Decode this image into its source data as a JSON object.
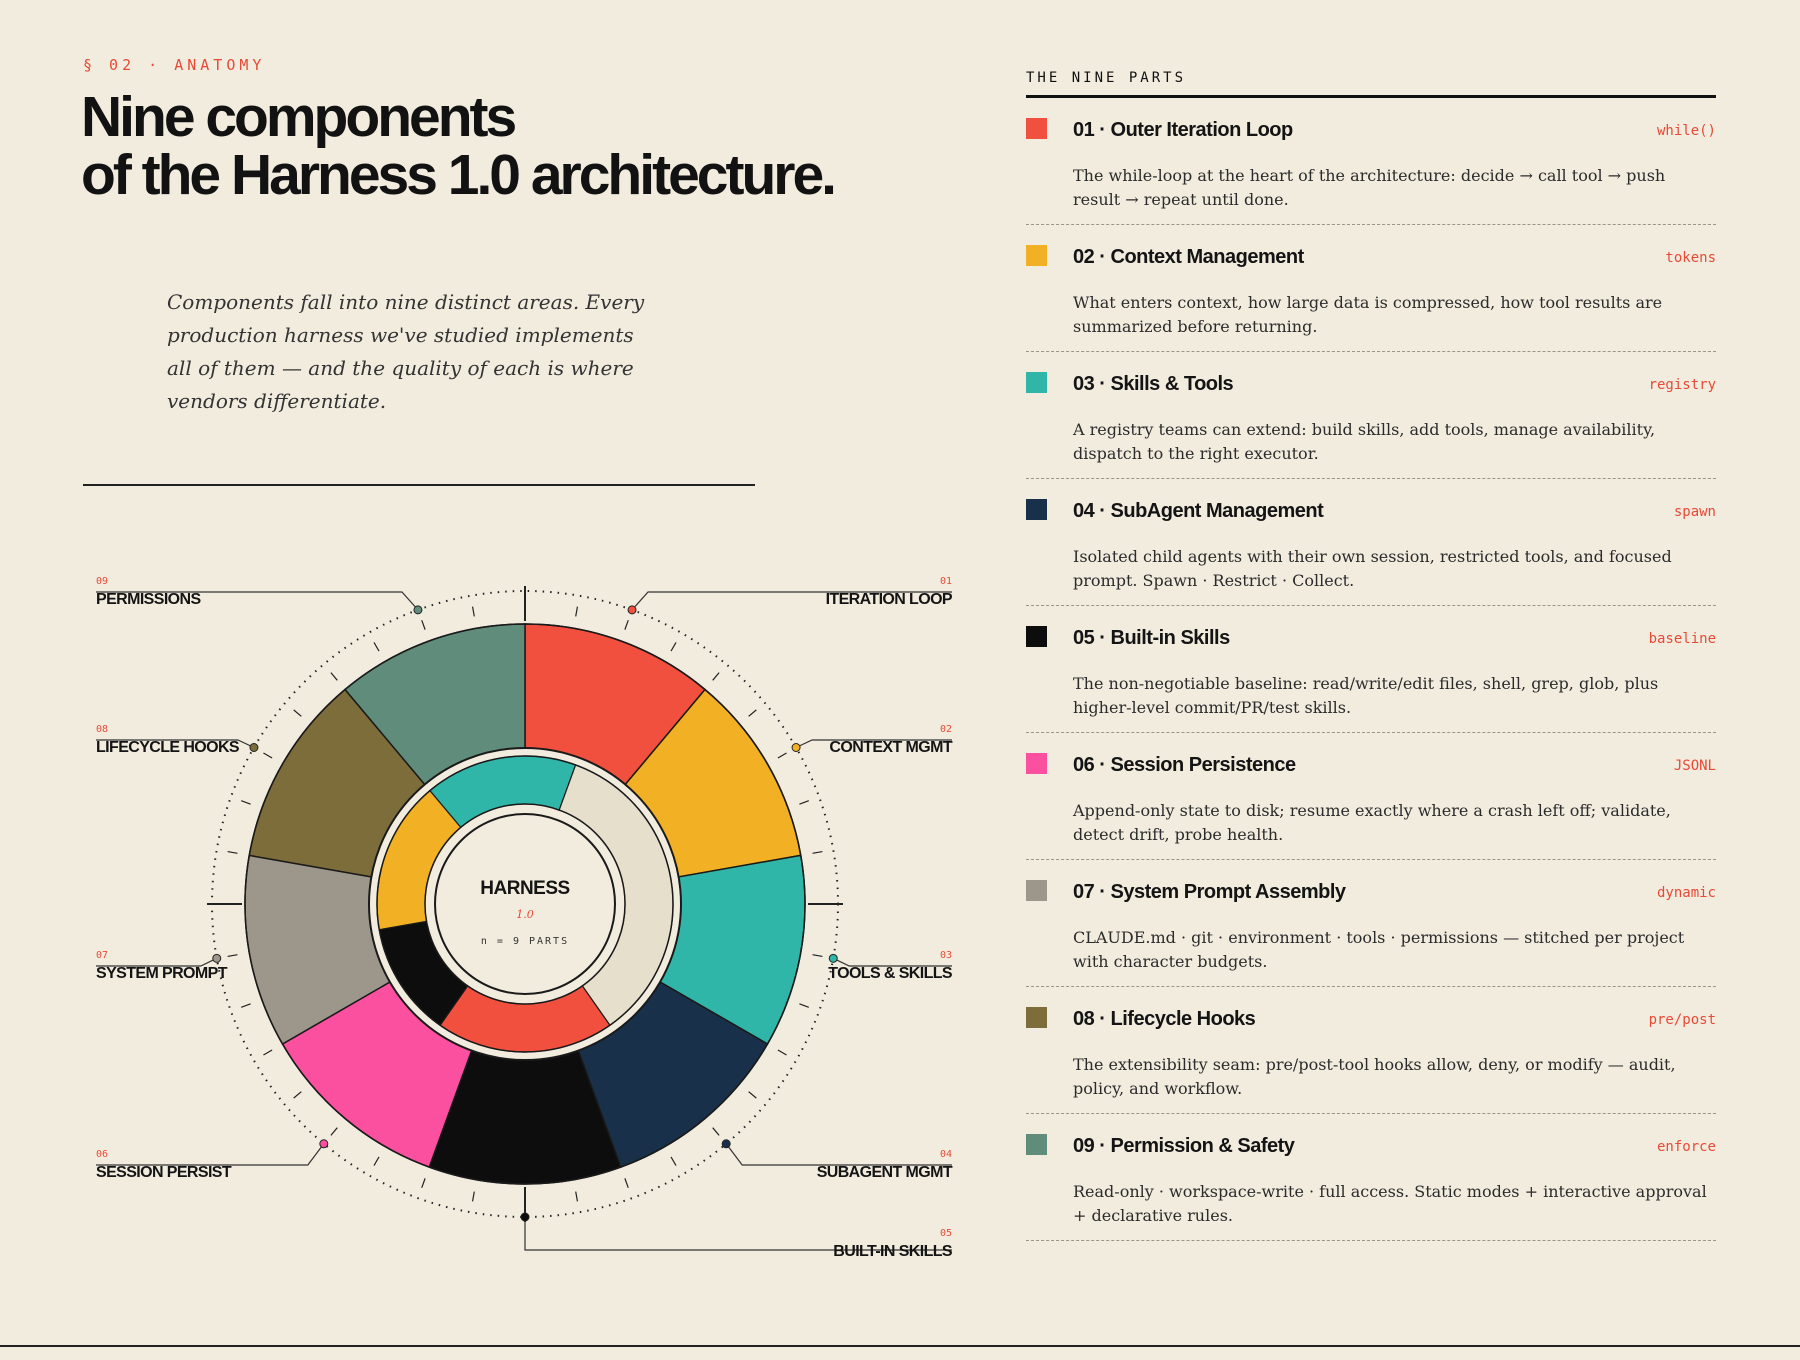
{
  "header": {
    "kicker": "§ 02 · ANATOMY",
    "title_line1": "Nine components",
    "title_line2": "of the Harness 1.0 architecture.",
    "lede": "Components fall into nine distinct areas. Every production harness we've studied implements all of them — and the quality of each is where vendors differentiate."
  },
  "diagram": {
    "center_title": "HARNESS",
    "center_version": "1.0",
    "center_caption": "n = 9 PARTS",
    "segments": [
      {
        "num": "01",
        "label": "ITERATION LOOP",
        "color": "#f2503e",
        "side": "right"
      },
      {
        "num": "02",
        "label": "CONTEXT MGMT",
        "color": "#f2b124",
        "side": "right"
      },
      {
        "num": "03",
        "label": "TOOLS & SKILLS",
        "color": "#2fb6a9",
        "side": "right"
      },
      {
        "num": "04",
        "label": "SUBAGENT MGMT",
        "color": "#183049",
        "side": "right"
      },
      {
        "num": "05",
        "label": "BUILT-IN SKILLS",
        "color": "#0d0d0d",
        "side": "right"
      },
      {
        "num": "06",
        "label": "SESSION PERSIST",
        "color": "#fb4fa0",
        "side": "left"
      },
      {
        "num": "07",
        "label": "SYSTEM PROMPT",
        "color": "#9c978a",
        "side": "left"
      },
      {
        "num": "08",
        "label": "LIFECYCLE HOOKS",
        "color": "#7c6d3a",
        "side": "left"
      },
      {
        "num": "09",
        "label": "PERMISSIONS",
        "color": "#608c7c",
        "side": "left"
      }
    ],
    "inner_ring_colors": [
      "#2fb6a9",
      "#e5dfcc",
      "#f2503e",
      "#0d0d0d",
      "#f2b124"
    ]
  },
  "parts": {
    "title": "THE NINE PARTS",
    "items": [
      {
        "title": "01 · Outer Iteration Loop",
        "tag": "while()",
        "color": "#f2503e",
        "desc": "The while-loop at the heart of the architecture: decide → call tool → push result → repeat until done."
      },
      {
        "title": "02 · Context Management",
        "tag": "tokens",
        "color": "#f2b124",
        "desc": "What enters context, how large data is compressed, how tool results are summarized before returning."
      },
      {
        "title": "03 · Skills & Tools",
        "tag": "registry",
        "color": "#2fb6a9",
        "desc": "A registry teams can extend: build skills, add tools, manage availability, dispatch to the right executor."
      },
      {
        "title": "04 · SubAgent Management",
        "tag": "spawn",
        "color": "#183049",
        "desc": "Isolated child agents with their own session, restricted tools, and focused prompt. Spawn · Restrict · Collect."
      },
      {
        "title": "05 · Built-in Skills",
        "tag": "baseline",
        "color": "#0d0d0d",
        "desc": "The non-negotiable baseline: read/write/edit files, shell, grep, glob, plus higher-level commit/PR/test skills."
      },
      {
        "title": "06 · Session Persistence",
        "tag": "JSONL",
        "color": "#fb4fa0",
        "desc": "Append-only state to disk; resume exactly where a crash left off; validate, detect drift, probe health."
      },
      {
        "title": "07 · System Prompt Assembly",
        "tag": "dynamic",
        "color": "#9c978a",
        "desc": "CLAUDE.md · git · environment · tools · permissions — stitched per project with character budgets."
      },
      {
        "title": "08 · Lifecycle Hooks",
        "tag": "pre/post",
        "color": "#7c6d3a",
        "desc": "The extensibility seam: pre/post-tool hooks allow, deny, or modify — audit, policy, and workflow."
      },
      {
        "title": "09 · Permission & Safety",
        "tag": "enforce",
        "color": "#608c7c",
        "desc": "Read-only · workspace-write · full access. Static modes + interactive approval + declarative rules."
      }
    ]
  }
}
